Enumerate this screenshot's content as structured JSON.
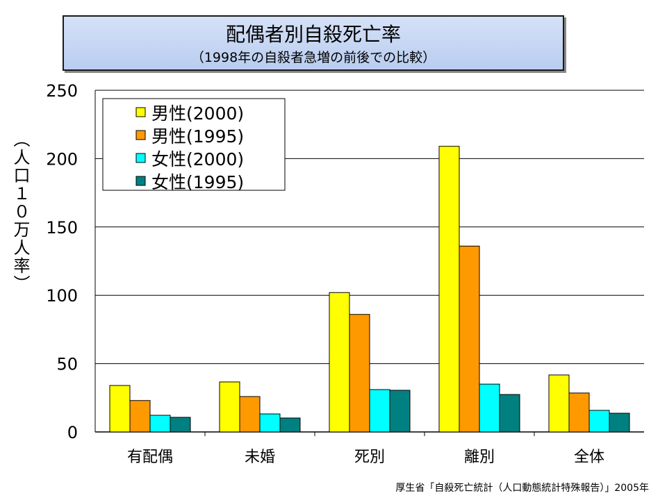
{
  "title": "配偶者別自殺死亡率",
  "subtitle": "（1998年の自殺者急増の前後での比較）",
  "source": "厚生省「自殺死亡統計（人口動態統計特殊報告）」2005年",
  "chart_data": {
    "type": "bar",
    "title": "配偶者別自殺死亡率",
    "ylabel": "（人口１０万人率）",
    "xlabel": "",
    "ylim": [
      0,
      250
    ],
    "yticks": [
      0,
      50,
      100,
      150,
      200,
      250
    ],
    "grid": true,
    "legend_position": "top-left",
    "categories": [
      "有配偶",
      "未婚",
      "死別",
      "離別",
      "全体"
    ],
    "series": [
      {
        "name": "男性(2000)",
        "color": "#ffff00",
        "values": [
          34,
          36.6,
          102,
          209,
          41.7
        ]
      },
      {
        "name": "男性(1995)",
        "color": "#ff9900",
        "values": [
          23,
          25.9,
          86,
          136,
          28.5
        ]
      },
      {
        "name": "女性(2000)",
        "color": "#00ffff",
        "values": [
          12.2,
          13.2,
          31,
          35,
          15.8
        ]
      },
      {
        "name": "女性(1995)",
        "color": "#008080",
        "values": [
          10.7,
          10.2,
          30.5,
          27.4,
          13.7
        ]
      }
    ]
  }
}
